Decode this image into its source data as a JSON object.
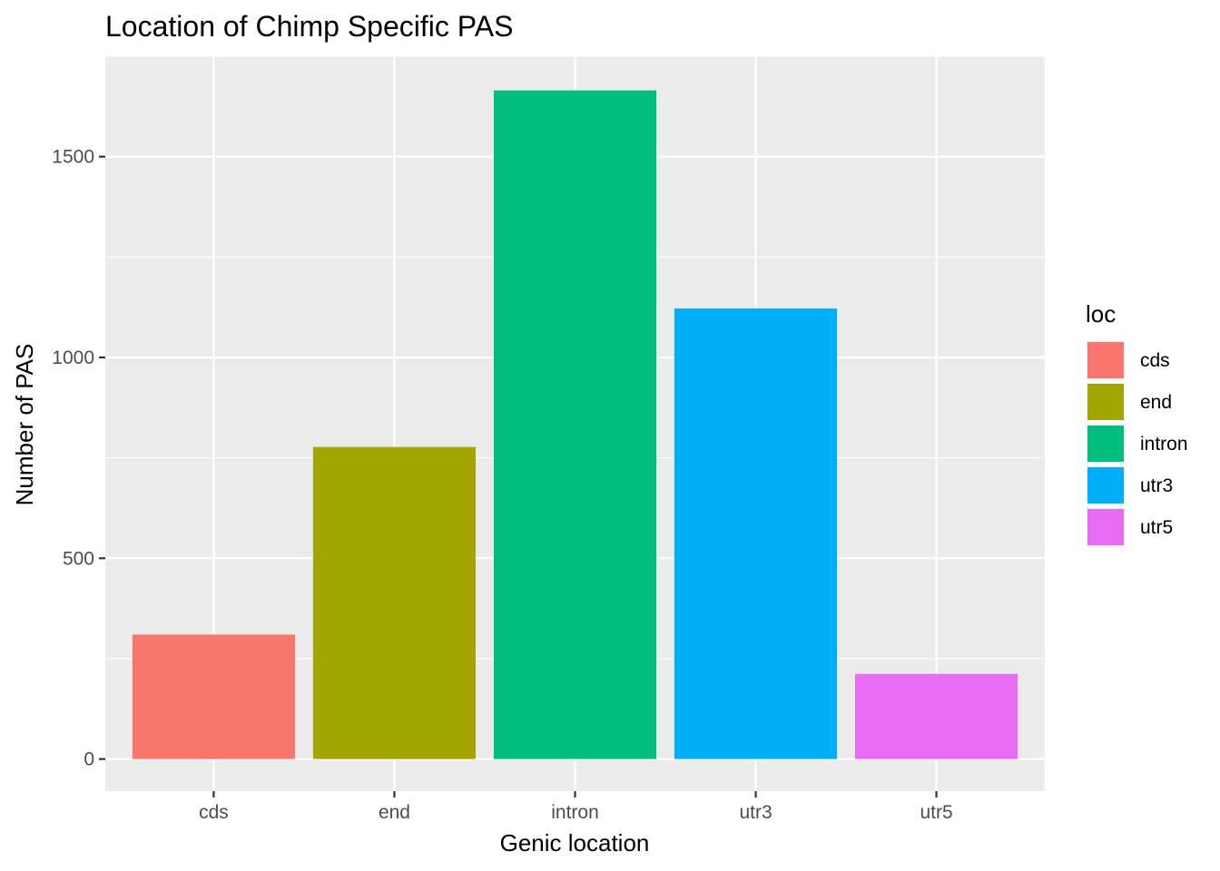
{
  "chart_data": {
    "type": "bar",
    "title": "Location of Chimp Specific PAS",
    "xlabel": "Genic location",
    "ylabel": "Number of PAS",
    "categories": [
      "cds",
      "end",
      "intron",
      "utr3",
      "utr5"
    ],
    "values": [
      310,
      777,
      1665,
      1122,
      212
    ],
    "colors": [
      "#F8766D",
      "#A3A500",
      "#00BF7D",
      "#00B0F6",
      "#E76BF3"
    ],
    "ylim": [
      -80,
      1750
    ],
    "yticks": [
      0,
      500,
      1000,
      1500
    ],
    "ytick_labels": [
      "0",
      "500",
      "1000",
      "1500"
    ],
    "grid": true,
    "panel_background": "#EBEBEB",
    "legend": {
      "title": "loc",
      "position": "right",
      "entries": [
        "cds",
        "end",
        "intron",
        "utr3",
        "utr5"
      ]
    }
  }
}
